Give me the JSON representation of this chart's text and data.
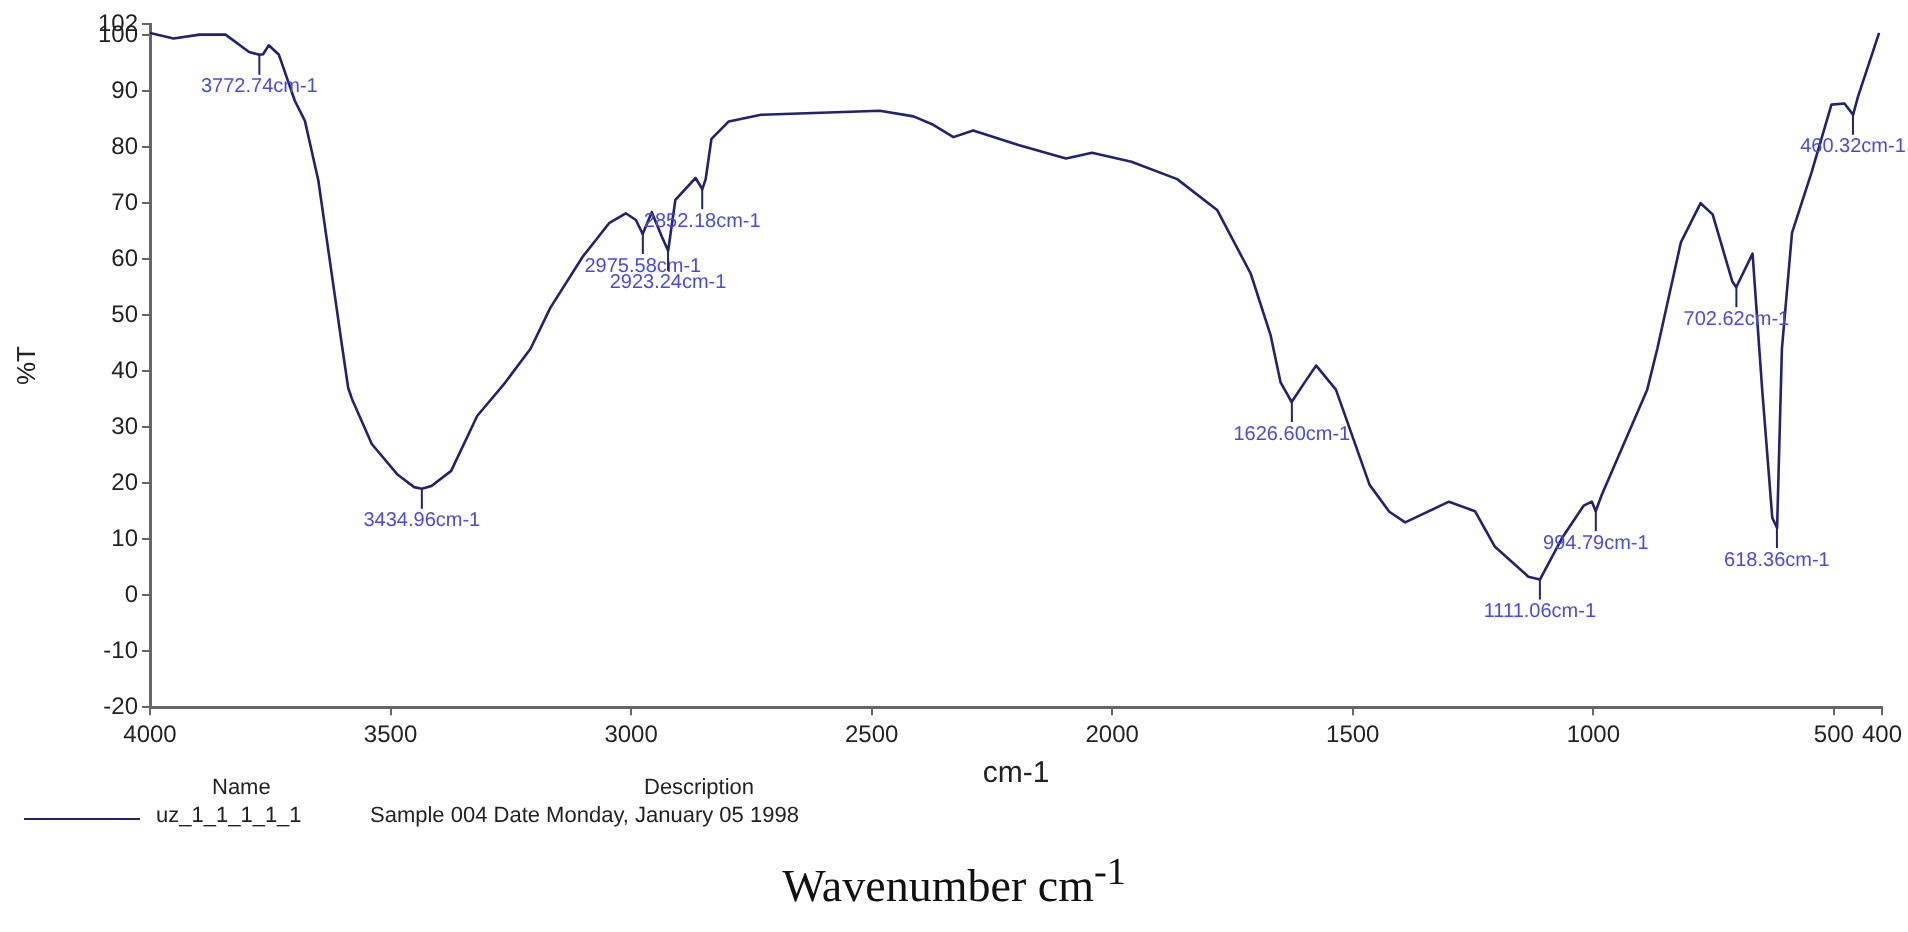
{
  "chart_data": {
    "type": "line",
    "xlabel": "cm-1",
    "ylabel": "%T",
    "xlim": [
      4000,
      400
    ],
    "xticks": [
      4000,
      3500,
      3000,
      2500,
      2000,
      1500,
      1000,
      500,
      400
    ],
    "ylim": [
      -20,
      102
    ],
    "yticks": [
      -20,
      -10,
      0,
      10,
      20,
      30,
      40,
      50,
      60,
      70,
      80,
      90,
      100,
      102
    ],
    "grid": false,
    "legend": "bottom",
    "series": [
      {
        "name": "uz_1_1_1_1_1",
        "color": "#22226e",
        "x": [
          4000,
          3951,
          3897,
          3843,
          3794,
          3772,
          3765,
          3753,
          3732,
          3699,
          3678,
          3650,
          3600,
          3588,
          3580,
          3539,
          3485,
          3451,
          3435,
          3415,
          3374,
          3320,
          3266,
          3209,
          3168,
          3101,
          3045,
          3011,
          2990,
          2976,
          2957,
          2936,
          2923,
          2908,
          2866,
          2852,
          2845,
          2833,
          2797,
          2730,
          2483,
          2413,
          2372,
          2330,
          2289,
          2195,
          2096,
          2042,
          1960,
          1865,
          1782,
          1712,
          1671,
          1650,
          1627,
          1600,
          1576,
          1535,
          1465,
          1424,
          1391,
          1300,
          1246,
          1205,
          1135,
          1111,
          1065,
          1020,
          1003,
          995,
          983,
          888,
          867,
          818,
          777,
          752,
          711,
          703,
          669,
          649,
          628,
          618,
          608,
          587,
          546,
          505,
          478,
          460,
          450,
          406
        ],
        "values": [
          100.4,
          99.4,
          100.1,
          100.1,
          97,
          96.5,
          96.6,
          98.2,
          96.5,
          88.3,
          84.7,
          74,
          44,
          37,
          35,
          27,
          21.5,
          19.3,
          19,
          19.5,
          22.2,
          32,
          37.5,
          44,
          51.3,
          60.4,
          66.5,
          68.2,
          67,
          64.5,
          68.4,
          64,
          61.5,
          70.6,
          74.5,
          72.5,
          74.3,
          81.5,
          84.6,
          85.8,
          86.5,
          85.5,
          84,
          81.8,
          83,
          80.4,
          78,
          79,
          77.4,
          74.3,
          68.8,
          57.4,
          46.5,
          38,
          34.5,
          38,
          41,
          36.7,
          19.7,
          14.9,
          13,
          16.7,
          15,
          8.7,
          3.3,
          2.8,
          10.2,
          16,
          16.7,
          15,
          17.8,
          36.7,
          44,
          63,
          70,
          68,
          56,
          55,
          61,
          36.7,
          13.8,
          12,
          44,
          64.7,
          75.6,
          87.6,
          87.8,
          85.8,
          89,
          100.4
        ]
      }
    ],
    "annotations": [
      {
        "text": "3772.74cm-1",
        "x": 3772.74,
        "y": 96.5
      },
      {
        "text": "3434.96cm-1",
        "x": 3434.96,
        "y": 19
      },
      {
        "text": "2975.58cm-1",
        "x": 2975.58,
        "y": 64.5
      },
      {
        "text": "2923.24cm-1",
        "x": 2923.24,
        "y": 61.5
      },
      {
        "text": "2852.18cm-1",
        "x": 2852.18,
        "y": 72.5
      },
      {
        "text": "1626.60cm-1",
        "x": 1626.6,
        "y": 34.5
      },
      {
        "text": "1111.06cm-1",
        "x": 1111.06,
        "y": 2.8
      },
      {
        "text": "994.79cm-1",
        "x": 994.79,
        "y": 15
      },
      {
        "text": "702.62cm-1",
        "x": 702.62,
        "y": 55
      },
      {
        "text": "618.36cm-1",
        "x": 618.36,
        "y": 12
      },
      {
        "text": "460.32cm-1",
        "x": 460.32,
        "y": 85.8
      },
      "Name",
      "Description",
      "Sample 004 Date Monday, January 05 1998",
      "Wavenumber cm$^{-1}$"
    ]
  }
}
